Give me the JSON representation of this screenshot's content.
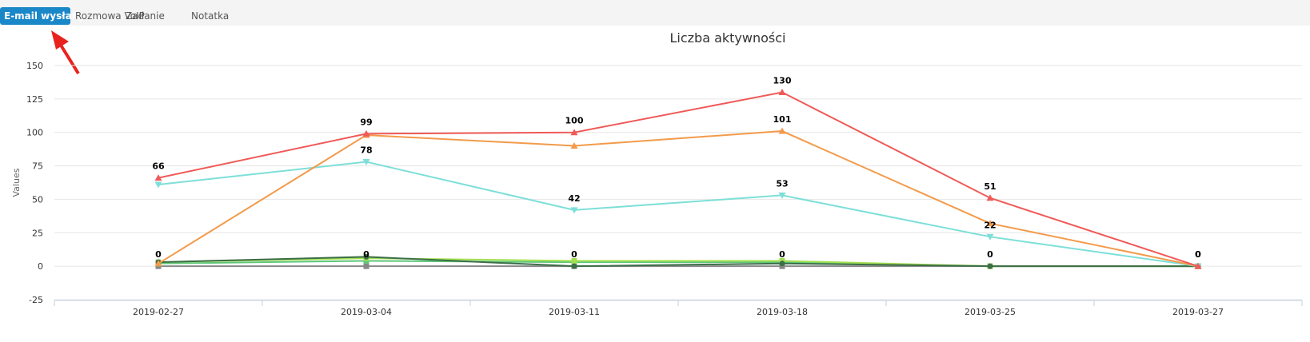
{
  "tabs": [
    {
      "label": "E-mail wysłany",
      "active": true
    },
    {
      "label": "Rozmowa VoIP",
      "active": false
    },
    {
      "label": "Zadanie",
      "active": false
    },
    {
      "label": "Notatka",
      "active": false
    }
  ],
  "chart_data": {
    "type": "line",
    "title": "Liczba aktywności",
    "ylabel": "Values",
    "xlabel": "",
    "ylim": [
      -25,
      150
    ],
    "yticks": [
      150,
      125,
      100,
      75,
      50,
      25,
      0,
      -25
    ],
    "categories": [
      "2019-02-27",
      "2019-03-04",
      "2019-03-11",
      "2019-03-18",
      "2019-03-25",
      "2019-03-27"
    ],
    "grid": true,
    "legend": "none",
    "series": [
      {
        "name": "red",
        "color": "#ef5a58",
        "marker": "triangle-up",
        "values": [
          66,
          99,
          100,
          130,
          51,
          0
        ],
        "labels": [
          "66",
          "99",
          "100",
          "130",
          "51",
          "0"
        ]
      },
      {
        "name": "orange",
        "color": "#f39a4a",
        "marker": "triangle-up",
        "values": [
          2,
          98,
          90,
          101,
          32,
          0
        ],
        "labels": [
          "",
          "",
          "",
          "101",
          "",
          ""
        ]
      },
      {
        "name": "cyan",
        "color": "#7ddfd8",
        "marker": "triangle-down",
        "values": [
          61,
          78,
          42,
          53,
          22,
          0
        ],
        "labels": [
          "",
          "78",
          "42",
          "53",
          "22",
          ""
        ]
      },
      {
        "name": "dark-green",
        "color": "#3c6e47",
        "marker": "circle",
        "values": [
          3,
          7,
          0,
          2,
          0,
          0
        ],
        "labels": []
      },
      {
        "name": "light-green",
        "color": "#a3e04f",
        "marker": "square",
        "values": [
          3,
          6,
          4,
          4,
          0,
          0
        ],
        "labels": []
      },
      {
        "name": "green",
        "color": "#5ec77a",
        "marker": "square",
        "values": [
          2,
          4,
          3,
          3,
          0,
          0
        ],
        "labels": []
      },
      {
        "name": "zero-line",
        "color": "#888888",
        "marker": "square",
        "values": [
          0,
          0,
          0,
          0,
          0,
          0
        ],
        "labels": [
          "0",
          "0",
          "0",
          "0",
          "0",
          "0"
        ]
      }
    ]
  }
}
